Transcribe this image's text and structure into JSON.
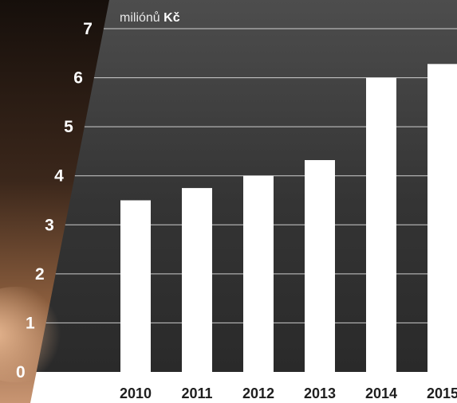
{
  "chart_data": {
    "type": "bar",
    "unit_label": {
      "prefix": "miliónů",
      "strong": "Kč"
    },
    "categories": [
      "2010",
      "2011",
      "2012",
      "2013",
      "2014",
      "2015"
    ],
    "values": [
      3.5,
      3.75,
      4.0,
      4.32,
      6.0,
      6.28
    ],
    "yticks": [
      "0",
      "1",
      "2",
      "3",
      "4",
      "5",
      "6",
      "7"
    ],
    "ylim": [
      0,
      7
    ],
    "grid": true,
    "bar_color": "#ffffff",
    "gridline_color": "#ffffff",
    "plot_background": "#3a3a3a",
    "left_panel_background": "#2b1d16"
  }
}
